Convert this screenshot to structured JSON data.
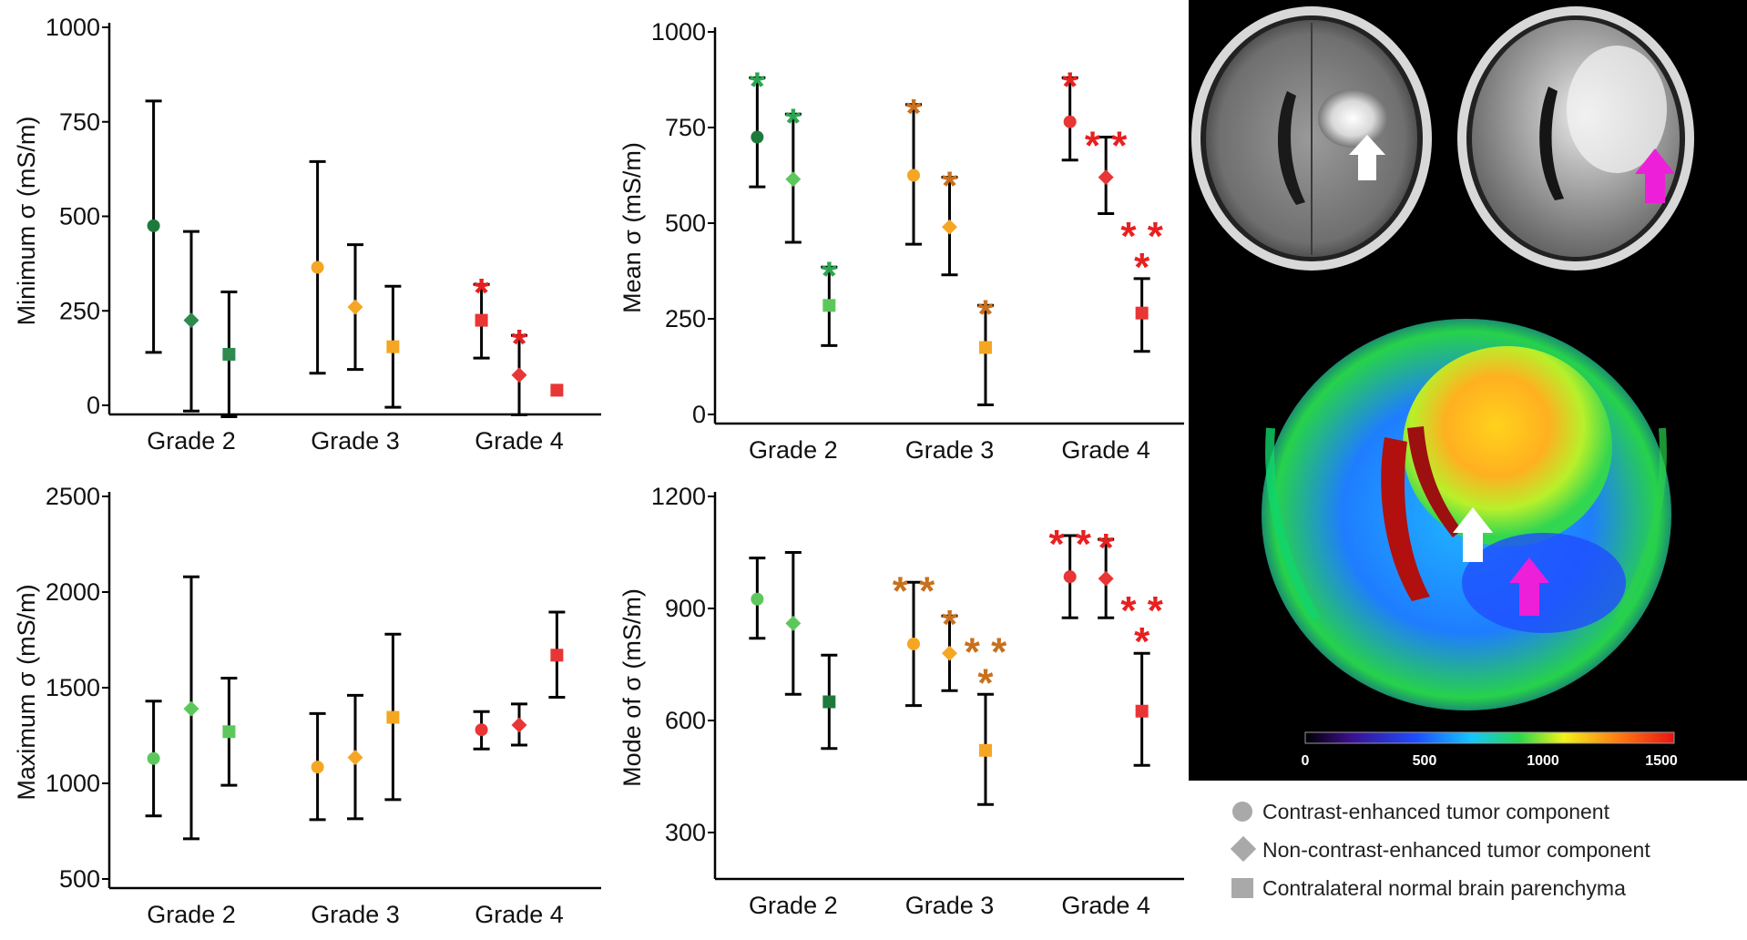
{
  "chart_data": [
    {
      "type": "errorbar",
      "ylabel": "Minimum σ (mS/m)",
      "ylim": [
        0,
        1000
      ],
      "yticks": [
        0,
        250,
        500,
        750,
        1000
      ],
      "categories": [
        "Grade 2",
        "Grade 3",
        "Grade 4"
      ],
      "series": [
        {
          "grade": "Grade 2",
          "component": "contrast-enhanced",
          "shape": "circle",
          "color": "#1e7a3c",
          "mean": 475,
          "low": 140,
          "high": 805,
          "star": ""
        },
        {
          "grade": "Grade 2",
          "component": "non-contrast-enhanced",
          "shape": "diamond",
          "color": "#2e8b4f",
          "mean": 225,
          "low": -15,
          "high": 460,
          "star": ""
        },
        {
          "grade": "Grade 2",
          "component": "contralateral",
          "shape": "square",
          "color": "#2e8b4f",
          "mean": 135,
          "low": -30,
          "high": 300,
          "star": ""
        },
        {
          "grade": "Grade 3",
          "component": "contrast-enhanced",
          "shape": "circle",
          "color": "#f5a623",
          "mean": 365,
          "low": 85,
          "high": 645,
          "star": ""
        },
        {
          "grade": "Grade 3",
          "component": "non-contrast-enhanced",
          "shape": "diamond",
          "color": "#f5a623",
          "mean": 260,
          "low": 95,
          "high": 425,
          "star": ""
        },
        {
          "grade": "Grade 3",
          "component": "contralateral",
          "shape": "square",
          "color": "#f5a623",
          "mean": 155,
          "low": -5,
          "high": 315,
          "star": ""
        },
        {
          "grade": "Grade 4",
          "component": "contrast-enhanced",
          "shape": "square",
          "color": "#e83535",
          "mean": 225,
          "low": 125,
          "high": 320,
          "star": "*"
        },
        {
          "grade": "Grade 4",
          "component": "non-contrast-enhanced",
          "shape": "diamond",
          "color": "#e83535",
          "mean": 80,
          "low": -25,
          "high": 185,
          "star": "*"
        },
        {
          "grade": "Grade 4",
          "component": "contralateral",
          "shape": "square",
          "color": "#e83535",
          "mean": 40,
          "low": 40,
          "high": 40,
          "star": ""
        }
      ]
    },
    {
      "type": "errorbar",
      "ylabel": "Mean σ (mS/m)",
      "ylim": [
        0,
        1000
      ],
      "yticks": [
        0,
        250,
        500,
        750,
        1000
      ],
      "categories": [
        "Grade 2",
        "Grade 3",
        "Grade 4"
      ],
      "series": [
        {
          "grade": "Grade 2",
          "component": "contrast-enhanced",
          "shape": "circle",
          "color": "#1e7a3c",
          "mean": 725,
          "low": 595,
          "high": 880,
          "star": "*"
        },
        {
          "grade": "Grade 2",
          "component": "non-contrast-enhanced",
          "shape": "diamond",
          "color": "#5cc85c",
          "mean": 615,
          "low": 450,
          "high": 785,
          "star": "*"
        },
        {
          "grade": "Grade 2",
          "component": "contralateral",
          "shape": "square",
          "color": "#5cc85c",
          "mean": 285,
          "low": 180,
          "high": 385,
          "star": "*"
        },
        {
          "grade": "Grade 3",
          "component": "contrast-enhanced",
          "shape": "circle",
          "color": "#f5a623",
          "mean": 625,
          "low": 445,
          "high": 810,
          "star": "*"
        },
        {
          "grade": "Grade 3",
          "component": "non-contrast-enhanced",
          "shape": "diamond",
          "color": "#f5a623",
          "mean": 490,
          "low": 365,
          "high": 620,
          "star": "*"
        },
        {
          "grade": "Grade 3",
          "component": "contralateral",
          "shape": "square",
          "color": "#f5a623",
          "mean": 175,
          "low": 25,
          "high": 285,
          "star": "*"
        },
        {
          "grade": "Grade 4",
          "component": "contrast-enhanced",
          "shape": "circle",
          "color": "#e83535",
          "mean": 765,
          "low": 665,
          "high": 880,
          "star": "*"
        },
        {
          "grade": "Grade 4",
          "component": "non-contrast-enhanced",
          "shape": "diamond",
          "color": "#e83535",
          "mean": 620,
          "low": 525,
          "high": 725,
          "star": "**"
        },
        {
          "grade": "Grade 4",
          "component": "contralateral",
          "shape": "square",
          "color": "#e83535",
          "mean": 265,
          "low": 165,
          "high": 355,
          "star": "**\n*"
        }
      ]
    },
    {
      "type": "errorbar",
      "ylabel": "Maximum σ (mS/m)",
      "ylim": [
        500,
        2500
      ],
      "yticks": [
        500,
        1000,
        1500,
        2000,
        2500
      ],
      "categories": [
        "Grade 2",
        "Grade 3",
        "Grade 4"
      ],
      "series": [
        {
          "grade": "Grade 2",
          "component": "contrast-enhanced",
          "shape": "circle",
          "color": "#5cc85c",
          "mean": 1130,
          "low": 830,
          "high": 1430,
          "star": ""
        },
        {
          "grade": "Grade 2",
          "component": "non-contrast-enhanced",
          "shape": "diamond",
          "color": "#5cc85c",
          "mean": 1390,
          "low": 710,
          "high": 2080,
          "star": ""
        },
        {
          "grade": "Grade 2",
          "component": "contralateral",
          "shape": "square",
          "color": "#5cc85c",
          "mean": 1270,
          "low": 990,
          "high": 1550,
          "star": ""
        },
        {
          "grade": "Grade 3",
          "component": "contrast-enhanced",
          "shape": "circle",
          "color": "#f5a623",
          "mean": 1085,
          "low": 810,
          "high": 1365,
          "star": ""
        },
        {
          "grade": "Grade 3",
          "component": "non-contrast-enhanced",
          "shape": "diamond",
          "color": "#f5a623",
          "mean": 1135,
          "low": 815,
          "high": 1460,
          "star": ""
        },
        {
          "grade": "Grade 3",
          "component": "contralateral",
          "shape": "square",
          "color": "#f5a623",
          "mean": 1345,
          "low": 915,
          "high": 1780,
          "star": ""
        },
        {
          "grade": "Grade 4",
          "component": "contrast-enhanced",
          "shape": "circle",
          "color": "#e83535",
          "mean": 1280,
          "low": 1180,
          "high": 1375,
          "star": ""
        },
        {
          "grade": "Grade 4",
          "component": "non-contrast-enhanced",
          "shape": "diamond",
          "color": "#e83535",
          "mean": 1305,
          "low": 1200,
          "high": 1415,
          "star": ""
        },
        {
          "grade": "Grade 4",
          "component": "contralateral",
          "shape": "square",
          "color": "#e83535",
          "mean": 1670,
          "low": 1450,
          "high": 1895,
          "star": ""
        }
      ]
    },
    {
      "type": "errorbar",
      "ylabel": "Mode of σ (mS/m)",
      "ylim": [
        200,
        1200
      ],
      "yticks": [
        300,
        600,
        900,
        1200
      ],
      "categories": [
        "Grade 2",
        "Grade 3",
        "Grade 4"
      ],
      "series": [
        {
          "grade": "Grade 2",
          "component": "contrast-enhanced",
          "shape": "circle",
          "color": "#5cc85c",
          "mean": 925,
          "low": 820,
          "high": 1035,
          "star": ""
        },
        {
          "grade": "Grade 2",
          "component": "non-contrast-enhanced",
          "shape": "diamond",
          "color": "#5cc85c",
          "mean": 860,
          "low": 670,
          "high": 1050,
          "star": ""
        },
        {
          "grade": "Grade 2",
          "component": "contralateral",
          "shape": "square",
          "color": "#1e7a3c",
          "mean": 650,
          "low": 525,
          "high": 775,
          "star": ""
        },
        {
          "grade": "Grade 3",
          "component": "contrast-enhanced",
          "shape": "circle",
          "color": "#f5a623",
          "mean": 805,
          "low": 640,
          "high": 970,
          "star": "**"
        },
        {
          "grade": "Grade 3",
          "component": "non-contrast-enhanced",
          "shape": "diamond",
          "color": "#f5a623",
          "mean": 780,
          "low": 680,
          "high": 880,
          "star": "*"
        },
        {
          "grade": "Grade 3",
          "component": "contralateral",
          "shape": "square",
          "color": "#f5a623",
          "mean": 520,
          "low": 375,
          "high": 670,
          "star": "**\n*"
        },
        {
          "grade": "Grade 4",
          "component": "contrast-enhanced",
          "shape": "circle",
          "color": "#e83535",
          "mean": 985,
          "low": 875,
          "high": 1095,
          "star": "**"
        },
        {
          "grade": "Grade 4",
          "component": "non-contrast-enhanced",
          "shape": "diamond",
          "color": "#e83535",
          "mean": 980,
          "low": 875,
          "high": 1085,
          "star": "*"
        },
        {
          "grade": "Grade 4",
          "component": "contralateral",
          "shape": "square",
          "color": "#e83535",
          "mean": 625,
          "low": 480,
          "high": 780,
          "star": "**\n*"
        }
      ]
    }
  ],
  "colorbar": {
    "ticks": [
      "0",
      "500",
      "1000",
      "1500"
    ]
  },
  "legend": {
    "items": [
      {
        "icon": "circle",
        "label": "Contrast-enhanced tumor component"
      },
      {
        "icon": "diamond",
        "label": "Non-contrast-enhanced tumor component"
      },
      {
        "icon": "square",
        "label": "Contralateral normal brain parenchyma"
      }
    ]
  },
  "colors": {
    "grade2_dark": "#1e7a3c",
    "grade2_light": "#5cc85c",
    "grade3": "#f5a623",
    "grade3_star": "#c8701e",
    "grade4": "#e83535",
    "arrow_white": "#ffffff",
    "arrow_magenta": "#ee1fd8"
  }
}
